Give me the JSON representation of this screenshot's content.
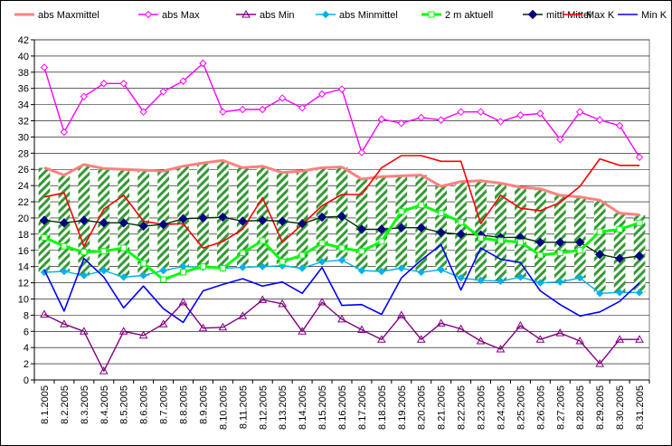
{
  "chart_data": {
    "type": "line",
    "title": "",
    "xlabel": "",
    "ylabel": "",
    "ylim": [
      0,
      42
    ],
    "yticks": [
      0,
      2,
      4,
      6,
      8,
      10,
      12,
      14,
      16,
      18,
      20,
      22,
      24,
      26,
      28,
      30,
      32,
      34,
      36,
      38,
      40,
      42
    ],
    "grid": "horizontal",
    "legend_position": "top",
    "categories": [
      "8.1.2005",
      "8.2.2005",
      "8.3.2005",
      "8.4.2005",
      "8.5.2005",
      "8.6.2005",
      "8.7.2005",
      "8.8.2005",
      "8.9.2005",
      "8.10.2005",
      "8.11.2005",
      "8.12.2005",
      "8.13.2005",
      "8.14.2005",
      "8.15.2005",
      "8.16.2005",
      "8.17.2005",
      "8.18.2005",
      "8.19.2005",
      "8.20.2005",
      "8.21.2005",
      "8.22.2005",
      "8.23.2005",
      "8.24.2005",
      "8.25.2005",
      "8.26.2005",
      "8.27.2005",
      "8.28.2005",
      "8.29.2005",
      "8.30.2005",
      "8.31.2005"
    ],
    "series": [
      {
        "name": "abs Maxmittel",
        "color": "#ff8080",
        "marker": "none",
        "style": "thick",
        "values": [
          26.2,
          25.3,
          26.6,
          26.1,
          26.0,
          25.9,
          25.8,
          26.4,
          26.8,
          27.1,
          26.2,
          26.4,
          25.6,
          25.8,
          26.2,
          26.3,
          24.8,
          25.1,
          25.2,
          25.3,
          23.9,
          24.5,
          24.6,
          24.3,
          23.8,
          23.6,
          22.8,
          22.6,
          22.2,
          20.6,
          20.4
        ]
      },
      {
        "name": "abs Max",
        "color": "#ff00ff",
        "marker": "diamond-open",
        "values": [
          38.6,
          30.6,
          35.0,
          36.6,
          36.6,
          33.1,
          35.6,
          36.9,
          39.1,
          33.1,
          33.4,
          33.4,
          34.8,
          33.6,
          35.3,
          35.9,
          28.1,
          32.2,
          31.7,
          32.4,
          32.1,
          33.1,
          33.1,
          31.9,
          32.7,
          32.9,
          29.7,
          33.1,
          32.1,
          31.4,
          27.5
        ]
      },
      {
        "name": "abs Min",
        "color": "#800080",
        "marker": "triangle-open",
        "values": [
          8.1,
          6.9,
          6.0,
          1.1,
          6.0,
          5.5,
          6.9,
          9.6,
          6.4,
          6.5,
          7.9,
          9.9,
          9.4,
          6.0,
          9.6,
          7.5,
          6.2,
          5.0,
          8.0,
          5.0,
          7.0,
          6.3,
          4.8,
          3.8,
          6.7,
          5.0,
          5.8,
          4.8,
          2.0,
          5.0,
          5.0
        ]
      },
      {
        "name": "abs Minmittel",
        "color": "#00b0f0",
        "marker": "diamond-filled",
        "values": [
          13.3,
          13.4,
          12.9,
          13.5,
          12.7,
          12.9,
          13.5,
          14.0,
          13.9,
          13.8,
          13.9,
          14.0,
          14.1,
          13.8,
          14.6,
          14.8,
          13.5,
          13.4,
          13.8,
          13.3,
          13.6,
          12.6,
          12.3,
          12.2,
          12.7,
          12.0,
          12.1,
          12.6,
          10.7,
          10.8,
          10.8
        ]
      },
      {
        "name": "2 m aktuell",
        "color": "#00ff00",
        "marker": "square-open",
        "style": "thick",
        "values": [
          17.6,
          16.5,
          15.8,
          15.9,
          16.3,
          14.4,
          12.4,
          13.3,
          14.0,
          13.8,
          15.7,
          17.2,
          14.6,
          15.4,
          16.9,
          16.3,
          15.9,
          17.1,
          20.8,
          21.6,
          20.6,
          19.5,
          17.5,
          17.2,
          17.0,
          15.4,
          15.7,
          16.0,
          18.3,
          18.6,
          19.4
        ]
      },
      {
        "name": "mittl Mittel",
        "color": "#003300",
        "marker": "diamond-filled-navy",
        "values": [
          19.7,
          19.4,
          19.7,
          19.4,
          19.4,
          19.0,
          19.2,
          19.9,
          20.0,
          20.1,
          19.6,
          19.7,
          19.6,
          19.3,
          20.1,
          20.2,
          18.6,
          18.6,
          18.8,
          18.8,
          18.2,
          18.0,
          17.9,
          17.6,
          17.6,
          17.0,
          17.0,
          17.0,
          15.5,
          15.0,
          15.3
        ]
      },
      {
        "name": "Max K",
        "color": "#ff0000",
        "marker": "none",
        "values": [
          22.6,
          23.1,
          16.5,
          21.1,
          22.8,
          19.6,
          19.2,
          19.3,
          16.3,
          17.1,
          18.6,
          22.5,
          17.0,
          19.2,
          21.5,
          22.9,
          22.9,
          26.2,
          27.7,
          27.7,
          27.0,
          27.0,
          19.3,
          22.8,
          21.2,
          20.9,
          21.9,
          23.9,
          27.3,
          26.5,
          26.5
        ]
      },
      {
        "name": "Min K",
        "color": "#0000ff",
        "marker": "none",
        "values": [
          13.6,
          8.5,
          15.0,
          12.7,
          8.9,
          11.6,
          8.8,
          7.1,
          11.0,
          11.8,
          12.5,
          11.6,
          12.1,
          10.7,
          13.9,
          9.2,
          9.3,
          8.1,
          12.6,
          14.8,
          16.7,
          11.1,
          16.3,
          14.9,
          14.5,
          11.0,
          9.3,
          7.9,
          8.4,
          9.7,
          12.0
        ]
      }
    ]
  }
}
